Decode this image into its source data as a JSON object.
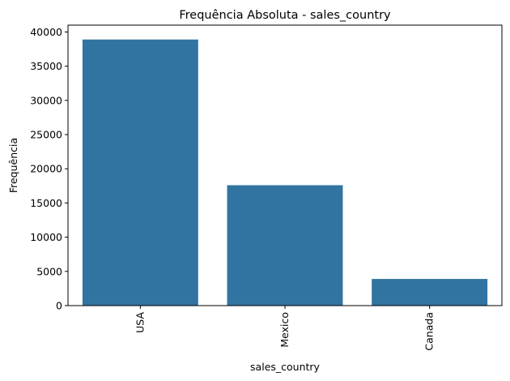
{
  "chart_data": {
    "type": "bar",
    "title": "Frequência Absoluta - sales_country",
    "xlabel": "sales_country",
    "ylabel": "Frequência",
    "categories": [
      "USA",
      "Mexico",
      "Canada"
    ],
    "values": [
      38900,
      17600,
      3900
    ],
    "ylim": [
      0,
      41000
    ],
    "yticks": [
      "0",
      "5000",
      "10000",
      "15000",
      "20000",
      "25000",
      "30000",
      "35000",
      "40000"
    ],
    "bar_color": "#3274a1",
    "grid": false,
    "legend": "none"
  }
}
